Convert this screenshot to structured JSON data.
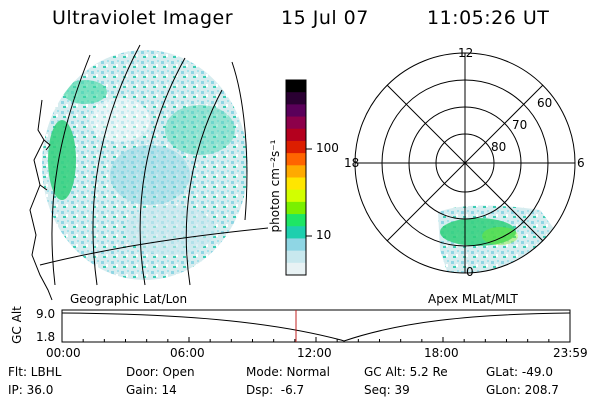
{
  "header": {
    "instrument": "Ultraviolet Imager",
    "date": "15 Jul 07",
    "time": "11:05:26 UT"
  },
  "colorbar": {
    "label": "photon cm⁻²s⁻¹",
    "ticks": [
      "100",
      "10"
    ],
    "colors": [
      "#000000",
      "#2a0032",
      "#5a005a",
      "#8c004a",
      "#b4001e",
      "#dc1e00",
      "#ff6400",
      "#ffaa00",
      "#ffe600",
      "#d2ff00",
      "#7af000",
      "#1ee664",
      "#1ecfae",
      "#8fd6e4",
      "#c8e8ee",
      "#e8f2f4"
    ]
  },
  "polar": {
    "mlt_labels": {
      "top": "12",
      "left": "18",
      "right": "6",
      "bottom": "0"
    },
    "lat_labels": [
      "60",
      "70",
      "80"
    ]
  },
  "panel_labels": {
    "left": "Geographic Lat/Lon",
    "right": "Apex MLat/MLT"
  },
  "altitude_plot": {
    "ylabel": "GC Alt",
    "ytick_top": "9.0",
    "ytick_bottom": "1.8",
    "x_ticks": [
      "00:00",
      "06:00",
      "12:00",
      "18:00",
      "23:59"
    ],
    "current_time_marker": "11:05"
  },
  "info": {
    "flt": "Flt: LBHL",
    "ip": "IP: 36.0",
    "door": "Door: Open",
    "gain": "Gain: 14",
    "mode": "Mode: Normal",
    "dsp": "Dsp:  -6.7",
    "gcalt": "GC Alt: 5.2 Re",
    "seq": "Seq: 39",
    "glat": "GLat: -49.0",
    "glon": "GLon: 208.7"
  }
}
